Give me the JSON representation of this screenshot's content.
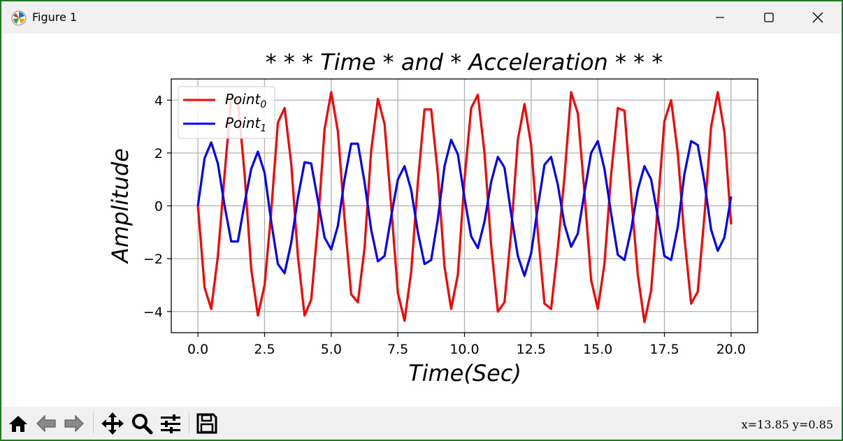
{
  "window": {
    "title": "Figure 1",
    "icon": "matplotlib-icon",
    "controls": [
      "minimize-icon",
      "maximize-icon",
      "close-icon"
    ]
  },
  "toolbar": {
    "tools": [
      "home-icon",
      "back-arrow-icon",
      "forward-arrow-icon",
      "pan-icon",
      "zoom-icon",
      "configure-subplots-icon",
      "save-icon"
    ],
    "coords": "x=13.85 y=0.85"
  },
  "chart_data": {
    "type": "line",
    "title": "* * * Time * and * Acceleration * * *",
    "xlabel": "Time(Sec)",
    "ylabel": "Amplitude",
    "xlim": [
      -1.0,
      21.0
    ],
    "ylim": [
      -4.8,
      4.8
    ],
    "xticks": [
      0.0,
      2.5,
      5.0,
      7.5,
      10.0,
      12.5,
      15.0,
      17.5,
      20.0
    ],
    "xtick_labels": [
      "0.0",
      "2.5",
      "5.0",
      "7.5",
      "10.0",
      "12.5",
      "15.0",
      "17.5",
      "20.0"
    ],
    "yticks": [
      -4,
      -2,
      0,
      2,
      4
    ],
    "ytick_labels": [
      "−4",
      "−2",
      "0",
      "2",
      "4"
    ],
    "grid": true,
    "legend": "upper-left",
    "x": [
      0.0,
      0.25,
      0.5,
      0.75,
      1.0,
      1.25,
      1.5,
      1.75,
      2.0,
      2.25,
      2.5,
      2.75,
      3.0,
      3.25,
      3.5,
      3.75,
      4.0,
      4.25,
      4.5,
      4.75,
      5.0,
      5.25,
      5.5,
      5.75,
      6.0,
      6.25,
      6.5,
      6.75,
      7.0,
      7.25,
      7.5,
      7.75,
      8.0,
      8.25,
      8.5,
      8.75,
      9.0,
      9.25,
      9.5,
      9.75,
      10.0,
      10.25,
      10.5,
      10.75,
      11.0,
      11.25,
      11.5,
      11.75,
      12.0,
      12.25,
      12.5,
      12.75,
      13.0,
      13.25,
      13.5,
      13.75,
      14.0,
      14.25,
      14.5,
      14.75,
      15.0,
      15.25,
      15.5,
      15.75,
      16.0,
      16.25,
      16.5,
      16.75,
      17.0,
      17.25,
      17.5,
      17.75,
      18.0,
      18.25,
      18.5,
      18.75,
      19.0,
      19.25,
      19.5,
      19.75,
      20.0
    ],
    "series": [
      {
        "name_base": "Point",
        "name_sub": "0",
        "color": "#ff0000",
        "values": [
          0.0,
          -3.1,
          -3.9,
          -1.9,
          1.2,
          4.1,
          4.0,
          1.2,
          -2.4,
          -4.15,
          -3.0,
          -0.2,
          3.15,
          3.7,
          1.6,
          -1.9,
          -4.15,
          -3.55,
          -0.7,
          2.9,
          4.3,
          2.8,
          -0.5,
          -3.35,
          -3.65,
          -1.6,
          2.1,
          4.05,
          3.1,
          0.0,
          -3.3,
          -4.35,
          -2.5,
          0.9,
          3.65,
          3.65,
          1.2,
          -2.3,
          -3.9,
          -2.6,
          1.0,
          3.7,
          4.2,
          2.0,
          -1.5,
          -4.0,
          -3.65,
          -1.0,
          2.5,
          3.85,
          2.3,
          -1.0,
          -3.7,
          -3.9,
          -1.6,
          1.1,
          4.3,
          3.5,
          0.5,
          -2.8,
          -3.9,
          -2.2,
          1.2,
          3.7,
          3.6,
          0.4,
          -2.6,
          -4.4,
          -3.2,
          0.0,
          3.2,
          4.0,
          2.0,
          -1.2,
          -3.7,
          -3.25,
          -0.4,
          3.0,
          4.3,
          2.8,
          -0.7
        ]
      },
      {
        "name_base": "Point",
        "name_sub": "1",
        "color": "#0000ff",
        "values": [
          0.0,
          1.8,
          2.4,
          1.6,
          0.0,
          -1.35,
          -1.35,
          0.1,
          1.4,
          2.05,
          1.25,
          -0.6,
          -2.2,
          -2.55,
          -1.4,
          0.3,
          1.65,
          1.6,
          0.2,
          -1.2,
          -1.65,
          -0.75,
          1.0,
          2.35,
          2.35,
          0.9,
          -0.9,
          -2.1,
          -1.9,
          -0.4,
          1.0,
          1.5,
          0.6,
          -1.0,
          -2.2,
          -2.05,
          -0.5,
          1.5,
          2.5,
          1.95,
          0.3,
          -1.15,
          -1.6,
          -0.6,
          0.9,
          1.85,
          1.45,
          -0.3,
          -1.9,
          -2.65,
          -1.8,
          -0.05,
          1.55,
          1.85,
          0.8,
          -0.7,
          -1.55,
          -1.05,
          0.5,
          2.0,
          2.45,
          1.4,
          -0.3,
          -1.85,
          -2.05,
          -0.9,
          0.6,
          1.5,
          1.0,
          -0.4,
          -1.9,
          -2.05,
          -0.8,
          1.2,
          2.45,
          2.3,
          0.9,
          -0.9,
          -1.7,
          -1.2,
          0.35
        ]
      }
    ]
  }
}
